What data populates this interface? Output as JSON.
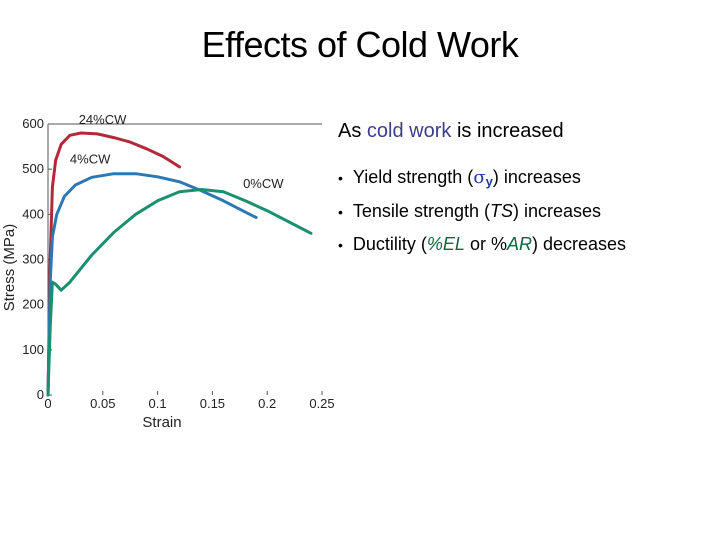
{
  "slide": {
    "title": "Effects of Cold Work",
    "lead_prefix": "As ",
    "lead_accent": "cold work",
    "lead_suffix": " is increased",
    "bullets": [
      {
        "dot": "•",
        "pre": "Yield strength (",
        "symbol": "σ",
        "sub": "y",
        "post": ") increases"
      },
      {
        "dot": "•",
        "pre": "Tensile strength (",
        "term": "TS",
        "post": ") increases"
      },
      {
        "dot": "•",
        "pre": "Ductility (",
        "term1": "%EL",
        "mid": " or %",
        "term2": "AR",
        "post": ") decreases"
      }
    ]
  },
  "chart_data": {
    "type": "line",
    "xlabel": "Strain",
    "ylabel": "Stress (MPa)",
    "xlim": [
      0,
      0.25
    ],
    "ylim": [
      0,
      600
    ],
    "xticks": [
      0,
      0.05,
      0.1,
      0.15,
      0.2,
      0.25
    ],
    "xtick_labels": [
      "0",
      "0.05",
      "0.1",
      "0.15",
      "0.2",
      "0.25"
    ],
    "yticks": [
      0,
      100,
      200,
      300,
      400,
      500,
      600
    ],
    "ytick_labels": [
      "0",
      "100",
      "200",
      "300",
      "400",
      "500",
      "600"
    ],
    "grid": false,
    "series": [
      {
        "name": "24%CW",
        "color": "#b22a3a",
        "points": [
          [
            0,
            0
          ],
          [
            0.002,
            300
          ],
          [
            0.004,
            460
          ],
          [
            0.007,
            520
          ],
          [
            0.012,
            555
          ],
          [
            0.02,
            575
          ],
          [
            0.03,
            580
          ],
          [
            0.045,
            578
          ],
          [
            0.06,
            570
          ],
          [
            0.075,
            560
          ],
          [
            0.09,
            545
          ],
          [
            0.105,
            528
          ],
          [
            0.12,
            505
          ]
        ]
      },
      {
        "name": "4%CW",
        "color": "#2b78b4",
        "points": [
          [
            0,
            0
          ],
          [
            0.002,
            250
          ],
          [
            0.004,
            350
          ],
          [
            0.008,
            400
          ],
          [
            0.015,
            440
          ],
          [
            0.025,
            465
          ],
          [
            0.04,
            482
          ],
          [
            0.06,
            490
          ],
          [
            0.08,
            490
          ],
          [
            0.1,
            483
          ],
          [
            0.12,
            472
          ],
          [
            0.14,
            452
          ],
          [
            0.16,
            430
          ],
          [
            0.18,
            405
          ],
          [
            0.19,
            393
          ]
        ]
      },
      {
        "name": "0%CW",
        "color": "#1a9070",
        "points": [
          [
            0,
            0
          ],
          [
            0.002,
            150
          ],
          [
            0.004,
            250
          ],
          [
            0.007,
            245
          ],
          [
            0.012,
            232
          ],
          [
            0.02,
            250
          ],
          [
            0.04,
            310
          ],
          [
            0.06,
            360
          ],
          [
            0.08,
            400
          ],
          [
            0.1,
            430
          ],
          [
            0.12,
            450
          ],
          [
            0.14,
            455
          ],
          [
            0.16,
            450
          ],
          [
            0.18,
            430
          ],
          [
            0.2,
            408
          ],
          [
            0.22,
            383
          ],
          [
            0.24,
            358
          ]
        ]
      }
    ],
    "annotations": [
      {
        "text": "24%CW",
        "x": 0.028,
        "y": 600
      },
      {
        "text": "4%CW",
        "x": 0.02,
        "y": 512
      },
      {
        "text": "0%CW",
        "x": 0.178,
        "y": 458
      }
    ]
  }
}
